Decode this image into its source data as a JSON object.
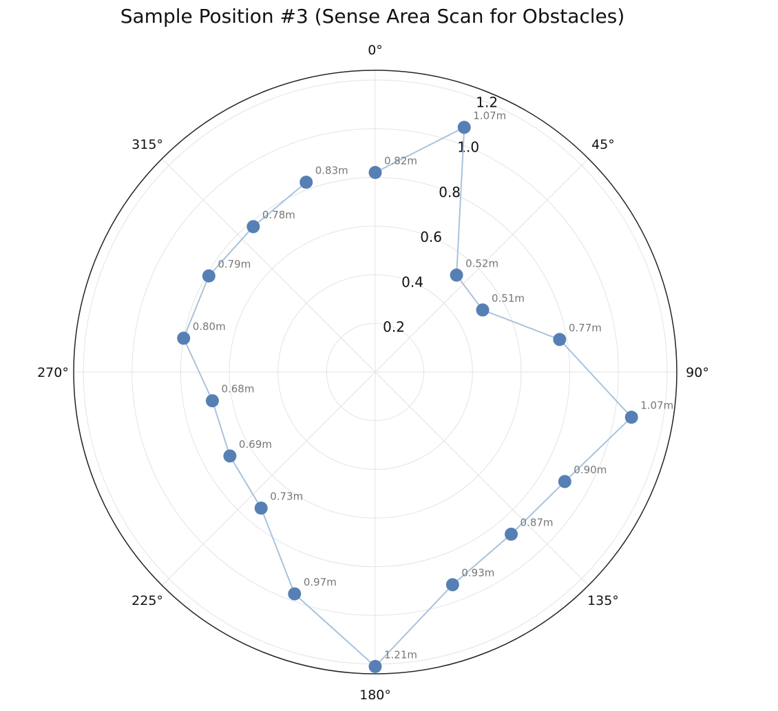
{
  "chart_data": {
    "type": "polar-line",
    "title": "Sample Position #3 (Sense Area Scan for Obstacles)",
    "angle_direction": "clockwise",
    "zero_location": "top",
    "angle_ticks": [
      0,
      45,
      90,
      135,
      180,
      225,
      270,
      315
    ],
    "angle_tick_labels": [
      "0°",
      "45°",
      "90°",
      "135°",
      "180°",
      "225°",
      "270°",
      "315°"
    ],
    "radial_ticks": [
      0.2,
      0.4,
      0.6,
      0.8,
      1.0,
      1.2
    ],
    "radial_tick_labels": [
      "0.2",
      "0.4",
      "0.6",
      "0.8",
      "1.0",
      "1.2"
    ],
    "rlim": [
      0,
      1.24
    ],
    "grid": true,
    "series": [
      {
        "angles_deg": [
          0,
          20,
          40,
          60,
          80,
          100,
          120,
          140,
          160,
          180,
          200,
          220,
          240,
          260,
          280,
          300,
          320,
          340
        ],
        "values": [
          0.82,
          1.07,
          0.52,
          0.51,
          0.77,
          1.07,
          0.9,
          0.87,
          0.93,
          1.21,
          0.97,
          0.73,
          0.69,
          0.68,
          0.8,
          0.79,
          0.78,
          0.83
        ],
        "labels": [
          "0.82m",
          "1.07m",
          "0.52m",
          "0.51m",
          "0.77m",
          "1.07m",
          "0.90m",
          "0.87m",
          "0.93m",
          "1.21m",
          "0.97m",
          "0.73m",
          "0.69m",
          "0.68m",
          "0.80m",
          "0.79m",
          "0.78m",
          "0.83m"
        ],
        "marker_color": "#5680b4",
        "line_color": "#a9c2dc"
      }
    ]
  }
}
